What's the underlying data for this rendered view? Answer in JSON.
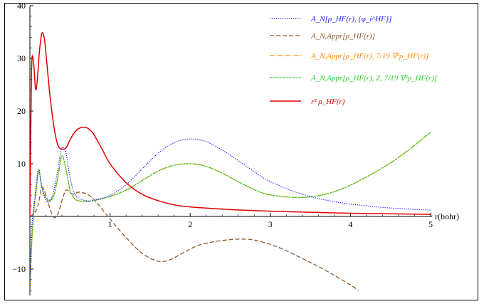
{
  "chart_data": {
    "type": "line",
    "xlabel": "r(bohr)",
    "ylabel": "",
    "xlim": [
      0,
      5
    ],
    "ylim": [
      -15,
      40
    ],
    "x_ticks": [
      "1",
      "2",
      "3",
      "4",
      "5"
    ],
    "y_ticks": [
      "-10",
      "10",
      "20",
      "30",
      "40"
    ],
    "legend_position": "top-right",
    "series": [
      {
        "name": "A_N[ρ_HF(r), {φ_i^HF}]",
        "color": "#1a1aff",
        "dash": "dotted",
        "x": [
          0,
          0.02,
          0.05,
          0.08,
          0.11,
          0.15,
          0.2,
          0.25,
          0.3,
          0.35,
          0.4,
          0.45,
          0.5,
          0.55,
          0.6,
          0.7,
          0.8,
          1.0,
          1.2,
          1.4,
          1.6,
          1.8,
          2.0,
          2.2,
          2.4,
          2.6,
          2.8,
          3.0,
          3.4,
          3.8,
          4.2,
          4.6,
          5.0
        ],
        "y": [
          -15,
          -3,
          2,
          6,
          9,
          5.5,
          3,
          2.8,
          5,
          9,
          13,
          12,
          7.5,
          4.5,
          3.5,
          3,
          3.1,
          4,
          6,
          9,
          12,
          14,
          14.7,
          14.2,
          12.6,
          10.6,
          8.5,
          6.6,
          4.2,
          2.8,
          2,
          1.5,
          1.2
        ]
      },
      {
        "name": "A_N,Appr[ρ_HF(r)]",
        "color": "#8b5a2b",
        "dash": "dashed",
        "x": [
          0,
          0.05,
          0.1,
          0.15,
          0.2,
          0.25,
          0.3,
          0.35,
          0.4,
          0.45,
          0.5,
          0.55,
          0.6,
          0.7,
          0.8,
          1.0,
          1.2,
          1.4,
          1.6,
          1.75,
          1.9,
          2.1,
          2.3,
          2.5,
          2.65,
          2.8,
          3.0,
          3.2,
          3.4,
          3.6,
          3.8,
          4.0,
          4.1
        ],
        "y": [
          0,
          0.5,
          2,
          5.5,
          4,
          1.5,
          -0.2,
          0.5,
          3,
          5,
          4.5,
          4.2,
          4.6,
          4.3,
          3.2,
          -0.5,
          -4,
          -7,
          -8.5,
          -8.2,
          -7,
          -5.5,
          -4.8,
          -4.4,
          -4.3,
          -4.5,
          -5.3,
          -6.5,
          -8,
          -9.5,
          -11.2,
          -13,
          -14
        ]
      },
      {
        "name": "A_N,Appr[ρ_HF(r), 7/19 ∇²ρ_HF(r)]",
        "color": "#ff8c00",
        "dash": "dashdot",
        "x": [
          0,
          0.02,
          0.05,
          0.08,
          0.11,
          0.15,
          0.2,
          0.25,
          0.3,
          0.35,
          0.4,
          0.45,
          0.5,
          0.55,
          0.6,
          0.7,
          0.8,
          1.0,
          1.2,
          1.4,
          1.6,
          1.8,
          2.0,
          2.2,
          2.4,
          2.6,
          2.8,
          3.0,
          3.4,
          3.8,
          4.2,
          4.6,
          5.0
        ],
        "y": [
          -15,
          -6,
          1,
          5,
          8.5,
          5.5,
          3.5,
          3,
          4,
          7.5,
          11.5,
          9,
          5,
          3.5,
          3,
          2.8,
          3,
          3.8,
          5,
          6.8,
          8.6,
          9.7,
          10,
          9.5,
          8.2,
          6.6,
          5.1,
          4.1,
          3.6,
          4.7,
          7.5,
          11.2,
          16
        ]
      },
      {
        "name": "A_N,Appr[ρ_HF(r), Z, 7/19 ∇²ρ_HF(r)]",
        "color": "#32cd32",
        "dash": "dashed-fine",
        "x": [
          0,
          0.02,
          0.05,
          0.08,
          0.11,
          0.15,
          0.2,
          0.25,
          0.3,
          0.35,
          0.4,
          0.45,
          0.5,
          0.55,
          0.6,
          0.7,
          0.8,
          1.0,
          1.2,
          1.4,
          1.6,
          1.8,
          2.0,
          2.2,
          2.4,
          2.6,
          2.8,
          3.0,
          3.4,
          3.8,
          4.2,
          4.6,
          5.0
        ],
        "y": [
          -15,
          -6,
          1,
          5,
          8.7,
          5.5,
          3.6,
          3.1,
          4,
          7.5,
          11.5,
          9,
          5,
          3.5,
          3,
          2.8,
          3,
          3.8,
          5,
          6.8,
          8.6,
          9.7,
          10,
          9.5,
          8.2,
          6.6,
          5.1,
          4.1,
          3.6,
          4.7,
          7.5,
          11.2,
          16
        ]
      },
      {
        "name": "r² ρ_HF(r)",
        "color": "#e00000",
        "dash": "solid",
        "x": [
          0,
          0.01,
          0.02,
          0.03,
          0.05,
          0.07,
          0.09,
          0.12,
          0.15,
          0.18,
          0.2,
          0.25,
          0.3,
          0.35,
          0.4,
          0.45,
          0.5,
          0.55,
          0.6,
          0.65,
          0.7,
          0.75,
          0.8,
          0.9,
          1.0,
          1.2,
          1.4,
          1.6,
          1.8,
          2.0,
          2.5,
          3.0,
          3.5,
          4.0,
          4.5,
          5.0
        ],
        "y": [
          0,
          15,
          27,
          30.5,
          28.5,
          24.2,
          25.5,
          31.5,
          34.8,
          33.8,
          31,
          23,
          17,
          13.5,
          12.8,
          13,
          14.5,
          15.8,
          16.6,
          16.9,
          16.9,
          16.4,
          15.5,
          12.8,
          10,
          6.4,
          4.2,
          3,
          2.2,
          1.8,
          1.3,
          1,
          0.8,
          0.6,
          0.5,
          0.4
        ]
      }
    ]
  }
}
